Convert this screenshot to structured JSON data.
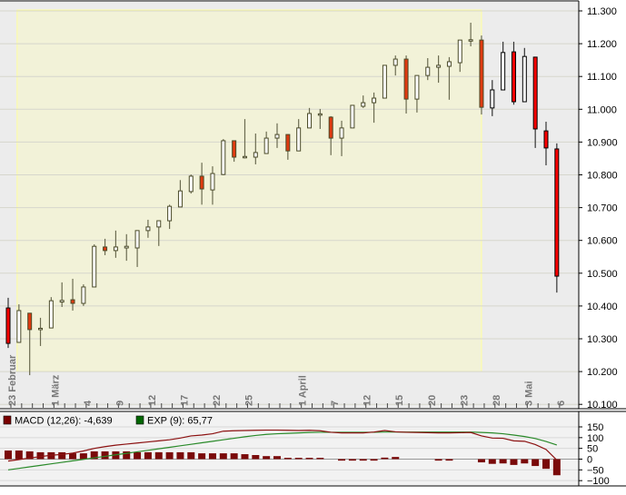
{
  "chart_data": [
    {
      "type": "candlestick",
      "ylim": [
        10100,
        11300
      ],
      "y_ticks": [
        "10.100",
        "10.200",
        "10.300",
        "10.400",
        "10.500",
        "10.600",
        "10.700",
        "10.800",
        "10.900",
        "11.000",
        "11.100",
        "11.200",
        "11.300"
      ],
      "y_tick_values": [
        10100,
        10200,
        10300,
        10400,
        10500,
        10600,
        10700,
        10800,
        10900,
        11000,
        11100,
        11200,
        11300
      ],
      "grid": true,
      "highlight_range_candles": [
        2,
        45
      ],
      "x_tick_labels": [
        {
          "label": "23 Februar",
          "at": 1
        },
        {
          "label": "1 März",
          "at": 5
        },
        {
          "label": "4",
          "at": 8
        },
        {
          "label": "9",
          "at": 11
        },
        {
          "label": "12",
          "at": 14
        },
        {
          "label": "17",
          "at": 17
        },
        {
          "label": "22",
          "at": 20
        },
        {
          "label": "25",
          "at": 23
        },
        {
          "label": "1 April",
          "at": 28
        },
        {
          "label": "7",
          "at": 31
        },
        {
          "label": "12",
          "at": 34
        },
        {
          "label": "15",
          "at": 37
        },
        {
          "label": "20",
          "at": 40
        },
        {
          "label": "23",
          "at": 43
        },
        {
          "label": "28",
          "at": 46
        },
        {
          "label": "3 Mai",
          "at": 49
        },
        {
          "label": "6",
          "at": 52
        }
      ],
      "ohlc": [
        [
          10394,
          10425,
          10272,
          10286
        ],
        [
          10289,
          10405,
          10289,
          10386
        ],
        [
          10378,
          10378,
          10189,
          10328
        ],
        [
          10328,
          10364,
          10278,
          10332
        ],
        [
          10333,
          10427,
          10333,
          10416
        ],
        [
          10412,
          10472,
          10397,
          10417
        ],
        [
          10419,
          10483,
          10386,
          10408
        ],
        [
          10408,
          10466,
          10400,
          10458
        ],
        [
          10458,
          10588,
          10458,
          10582
        ],
        [
          10580,
          10605,
          10555,
          10569
        ],
        [
          10569,
          10630,
          10547,
          10580
        ],
        [
          10577,
          10619,
          10538,
          10582
        ],
        [
          10577,
          10630,
          10519,
          10630
        ],
        [
          10630,
          10663,
          10608,
          10641
        ],
        [
          10641,
          10660,
          10583,
          10660
        ],
        [
          10660,
          10709,
          10635,
          10704
        ],
        [
          10702,
          10784,
          10702,
          10751
        ],
        [
          10749,
          10801,
          10743,
          10796
        ],
        [
          10796,
          10837,
          10709,
          10757
        ],
        [
          10754,
          10826,
          10709,
          10804
        ],
        [
          10801,
          10909,
          10799,
          10904
        ],
        [
          10904,
          10904,
          10840,
          10854
        ],
        [
          10852,
          10970,
          10850,
          10856
        ],
        [
          10854,
          10926,
          10832,
          10868
        ],
        [
          10865,
          10932,
          10865,
          10912
        ],
        [
          10912,
          10957,
          10882,
          10923
        ],
        [
          10923,
          10923,
          10846,
          10873
        ],
        [
          10873,
          10970,
          10873,
          10943
        ],
        [
          10943,
          11004,
          10943,
          10987
        ],
        [
          10982,
          11001,
          10940,
          10986
        ],
        [
          10976,
          10979,
          10860,
          10912
        ],
        [
          10912,
          10965,
          10857,
          10943
        ],
        [
          10943,
          11012,
          10943,
          11012
        ],
        [
          11009,
          11042,
          11004,
          11020
        ],
        [
          11020,
          11051,
          10959,
          11034
        ],
        [
          11034,
          11134,
          11034,
          11134
        ],
        [
          11134,
          11164,
          11103,
          11153
        ],
        [
          11153,
          11164,
          10987,
          11031
        ],
        [
          11031,
          11103,
          10990,
          11103
        ],
        [
          11103,
          11156,
          11089,
          11128
        ],
        [
          11128,
          11164,
          11081,
          11134
        ],
        [
          11131,
          11159,
          11029,
          11145
        ],
        [
          11142,
          11211,
          11114,
          11211
        ],
        [
          11210,
          11264,
          11192,
          11212
        ],
        [
          11211,
          11225,
          10984,
          11006
        ],
        [
          11004,
          11089,
          10979,
          11059
        ],
        [
          11059,
          11206,
          11059,
          11173
        ],
        [
          11175,
          11206,
          11014,
          11023
        ],
        [
          11023,
          11187,
          11023,
          11161
        ],
        [
          11159,
          11159,
          10882,
          10940
        ],
        [
          10934,
          10962,
          10829,
          10882
        ],
        [
          10879,
          10896,
          10441,
          10491
        ]
      ],
      "colors": {
        "up_fill": "#ffffff",
        "down_fill_highlight": "#e03a10",
        "down_fill": "#ff0000",
        "outline_highlight": "#4a4a28",
        "outline": "#000000",
        "highlight": "#f2f2d8"
      }
    },
    {
      "type": "bar+line",
      "ylim": [
        -115,
        170
      ],
      "y_ticks": [
        "150",
        "100",
        "50",
        "0",
        "−50",
        "−100"
      ],
      "y_tick_values": [
        150,
        100,
        50,
        0,
        -50,
        -100
      ],
      "legend": [
        {
          "label": "MACD (12,26): -4,639",
          "color": "#7a0000"
        },
        {
          "label": "EXP (9): 65,77",
          "color": "#006600"
        }
      ],
      "histogram": [
        40,
        40,
        36,
        32,
        32,
        32,
        27,
        27,
        36,
        36,
        36,
        36,
        32,
        32,
        32,
        32,
        32,
        32,
        27,
        27,
        27,
        27,
        23,
        19,
        14,
        14,
        6,
        6,
        6,
        6,
        0,
        -7,
        -7,
        -7,
        -7,
        7,
        10,
        0,
        0,
        0,
        -7,
        -7,
        0,
        0,
        -15,
        -22,
        -20,
        -27,
        -20,
        -32,
        -45,
        -75
      ],
      "series": [
        {
          "values": [
            -9,
            -2,
            5,
            12,
            18,
            22,
            28,
            38,
            50,
            58,
            65,
            70,
            75,
            80,
            85,
            90,
            98,
            108,
            112,
            118,
            130,
            132,
            133,
            134,
            135,
            135,
            134,
            133,
            134,
            132,
            125,
            122,
            122,
            122,
            126,
            133,
            127,
            125,
            124,
            123,
            122,
            122,
            123,
            124,
            108,
            98,
            97,
            85,
            83,
            68,
            45,
            -4.639
          ],
          "color": "#8b1010"
        },
        {
          "values": [
            -50,
            -43,
            -36,
            -29,
            -22,
            -15,
            -8,
            -1,
            6,
            13,
            20,
            27,
            34,
            41,
            48,
            55,
            62,
            69,
            76,
            83,
            90,
            97,
            104,
            110,
            115,
            118,
            120,
            122,
            124,
            125,
            125,
            125,
            125,
            125,
            125,
            126,
            126,
            126,
            126,
            126,
            126,
            126,
            126,
            126,
            124,
            122,
            118,
            112,
            105,
            96,
            82,
            65.77
          ],
          "color": "#2a8a2a"
        }
      ]
    }
  ]
}
